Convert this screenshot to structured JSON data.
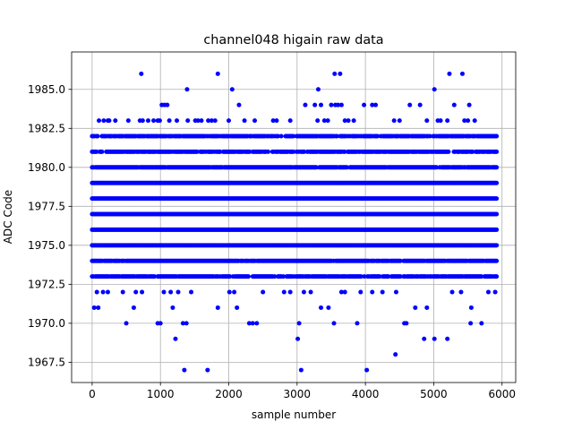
{
  "chart_data": {
    "type": "scatter",
    "title": "channel048 higain raw data",
    "xlabel": "sample number",
    "ylabel": "ADC Code",
    "xlim": [
      -300,
      6200
    ],
    "ylim": [
      1966.2,
      1987.4
    ],
    "grid": true,
    "marker_color": "#0000ff",
    "x_ticks": [
      0,
      1000,
      2000,
      3000,
      4000,
      5000,
      6000
    ],
    "x_tick_labels": [
      "0",
      "1000",
      "2000",
      "3000",
      "4000",
      "5000",
      "6000"
    ],
    "y_ticks": [
      1967.5,
      1970.0,
      1972.5,
      1975.0,
      1977.5,
      1980.0,
      1982.5,
      1985.0
    ],
    "y_tick_labels": [
      "1967.5",
      "1970.0",
      "1972.5",
      "1975.0",
      "1977.5",
      "1980.0",
      "1982.5",
      "1985.0"
    ],
    "sample_range": [
      0,
      5920
    ],
    "dense_levels": [
      1973,
      1974,
      1975,
      1976,
      1977,
      1978,
      1979,
      1980,
      1981,
      1982
    ],
    "level_fill_fraction": {
      "1973": 0.85,
      "1974": 0.95,
      "1975": 1.0,
      "1976": 1.0,
      "1977": 1.0,
      "1978": 1.0,
      "1979": 1.0,
      "1980": 0.95,
      "1981": 0.8,
      "1982": 0.85
    },
    "sparse_points": [
      {
        "x": 30,
        "y": 1971
      },
      {
        "x": 90,
        "y": 1971
      },
      {
        "x": 70,
        "y": 1972
      },
      {
        "x": 160,
        "y": 1972
      },
      {
        "x": 230,
        "y": 1972
      },
      {
        "x": 450,
        "y": 1972
      },
      {
        "x": 500,
        "y": 1970
      },
      {
        "x": 610,
        "y": 1971
      },
      {
        "x": 640,
        "y": 1972
      },
      {
        "x": 730,
        "y": 1972
      },
      {
        "x": 960,
        "y": 1970
      },
      {
        "x": 1000,
        "y": 1970
      },
      {
        "x": 1050,
        "y": 1972
      },
      {
        "x": 1150,
        "y": 1972
      },
      {
        "x": 1180,
        "y": 1971
      },
      {
        "x": 1220,
        "y": 1969
      },
      {
        "x": 1260,
        "y": 1972
      },
      {
        "x": 1330,
        "y": 1970
      },
      {
        "x": 1350,
        "y": 1967
      },
      {
        "x": 1380,
        "y": 1970
      },
      {
        "x": 1450,
        "y": 1972
      },
      {
        "x": 1690,
        "y": 1967
      },
      {
        "x": 1840,
        "y": 1971
      },
      {
        "x": 2010,
        "y": 1972
      },
      {
        "x": 2080,
        "y": 1972
      },
      {
        "x": 2120,
        "y": 1971
      },
      {
        "x": 2300,
        "y": 1970
      },
      {
        "x": 2350,
        "y": 1970
      },
      {
        "x": 2410,
        "y": 1970
      },
      {
        "x": 2500,
        "y": 1972
      },
      {
        "x": 2810,
        "y": 1972
      },
      {
        "x": 2900,
        "y": 1972
      },
      {
        "x": 3010,
        "y": 1969
      },
      {
        "x": 3030,
        "y": 1970
      },
      {
        "x": 3060,
        "y": 1967
      },
      {
        "x": 3100,
        "y": 1972
      },
      {
        "x": 3200,
        "y": 1972
      },
      {
        "x": 3350,
        "y": 1971
      },
      {
        "x": 3460,
        "y": 1971
      },
      {
        "x": 3540,
        "y": 1970
      },
      {
        "x": 3650,
        "y": 1972
      },
      {
        "x": 3700,
        "y": 1972
      },
      {
        "x": 3880,
        "y": 1970
      },
      {
        "x": 3930,
        "y": 1972
      },
      {
        "x": 4020,
        "y": 1967
      },
      {
        "x": 4100,
        "y": 1972
      },
      {
        "x": 4250,
        "y": 1972
      },
      {
        "x": 4440,
        "y": 1968
      },
      {
        "x": 4450,
        "y": 1972
      },
      {
        "x": 4570,
        "y": 1970
      },
      {
        "x": 4600,
        "y": 1970
      },
      {
        "x": 4730,
        "y": 1971
      },
      {
        "x": 4860,
        "y": 1969
      },
      {
        "x": 4900,
        "y": 1971
      },
      {
        "x": 5010,
        "y": 1969
      },
      {
        "x": 5200,
        "y": 1969
      },
      {
        "x": 5270,
        "y": 1972
      },
      {
        "x": 5400,
        "y": 1972
      },
      {
        "x": 5550,
        "y": 1971
      },
      {
        "x": 5540,
        "y": 1970
      },
      {
        "x": 5700,
        "y": 1970
      },
      {
        "x": 5800,
        "y": 1972
      },
      {
        "x": 5900,
        "y": 1972
      },
      {
        "x": 100,
        "y": 1983
      },
      {
        "x": 170,
        "y": 1983
      },
      {
        "x": 230,
        "y": 1983
      },
      {
        "x": 250,
        "y": 1983
      },
      {
        "x": 340,
        "y": 1983
      },
      {
        "x": 530,
        "y": 1983
      },
      {
        "x": 700,
        "y": 1983
      },
      {
        "x": 740,
        "y": 1983
      },
      {
        "x": 820,
        "y": 1983
      },
      {
        "x": 900,
        "y": 1983
      },
      {
        "x": 960,
        "y": 1983
      },
      {
        "x": 990,
        "y": 1983
      },
      {
        "x": 1020,
        "y": 1984
      },
      {
        "x": 1060,
        "y": 1984
      },
      {
        "x": 1100,
        "y": 1984
      },
      {
        "x": 1130,
        "y": 1983
      },
      {
        "x": 1240,
        "y": 1983
      },
      {
        "x": 1400,
        "y": 1983
      },
      {
        "x": 1510,
        "y": 1983
      },
      {
        "x": 1550,
        "y": 1983
      },
      {
        "x": 1600,
        "y": 1983
      },
      {
        "x": 1700,
        "y": 1983
      },
      {
        "x": 1750,
        "y": 1983
      },
      {
        "x": 1800,
        "y": 1983
      },
      {
        "x": 2000,
        "y": 1983
      },
      {
        "x": 2150,
        "y": 1984
      },
      {
        "x": 2230,
        "y": 1983
      },
      {
        "x": 2380,
        "y": 1983
      },
      {
        "x": 2650,
        "y": 1983
      },
      {
        "x": 2700,
        "y": 1983
      },
      {
        "x": 2900,
        "y": 1983
      },
      {
        "x": 3120,
        "y": 1984
      },
      {
        "x": 3260,
        "y": 1984
      },
      {
        "x": 3300,
        "y": 1983
      },
      {
        "x": 3350,
        "y": 1984
      },
      {
        "x": 3400,
        "y": 1983
      },
      {
        "x": 3450,
        "y": 1983
      },
      {
        "x": 3500,
        "y": 1984
      },
      {
        "x": 3560,
        "y": 1984
      },
      {
        "x": 3600,
        "y": 1984
      },
      {
        "x": 3650,
        "y": 1984
      },
      {
        "x": 3700,
        "y": 1983
      },
      {
        "x": 3750,
        "y": 1983
      },
      {
        "x": 3830,
        "y": 1983
      },
      {
        "x": 3980,
        "y": 1984
      },
      {
        "x": 4100,
        "y": 1984
      },
      {
        "x": 4150,
        "y": 1984
      },
      {
        "x": 4420,
        "y": 1983
      },
      {
        "x": 4500,
        "y": 1983
      },
      {
        "x": 4650,
        "y": 1984
      },
      {
        "x": 4800,
        "y": 1984
      },
      {
        "x": 4900,
        "y": 1983
      },
      {
        "x": 5060,
        "y": 1983
      },
      {
        "x": 5100,
        "y": 1983
      },
      {
        "x": 5200,
        "y": 1983
      },
      {
        "x": 5300,
        "y": 1984
      },
      {
        "x": 5450,
        "y": 1983
      },
      {
        "x": 5500,
        "y": 1983
      },
      {
        "x": 5520,
        "y": 1984
      },
      {
        "x": 5600,
        "y": 1983
      },
      {
        "x": 720,
        "y": 1986
      },
      {
        "x": 1840,
        "y": 1986
      },
      {
        "x": 1390,
        "y": 1985
      },
      {
        "x": 2050,
        "y": 1985
      },
      {
        "x": 3310,
        "y": 1985
      },
      {
        "x": 3550,
        "y": 1986
      },
      {
        "x": 3630,
        "y": 1986
      },
      {
        "x": 5010,
        "y": 1985
      },
      {
        "x": 5230,
        "y": 1986
      },
      {
        "x": 5420,
        "y": 1986
      }
    ]
  }
}
